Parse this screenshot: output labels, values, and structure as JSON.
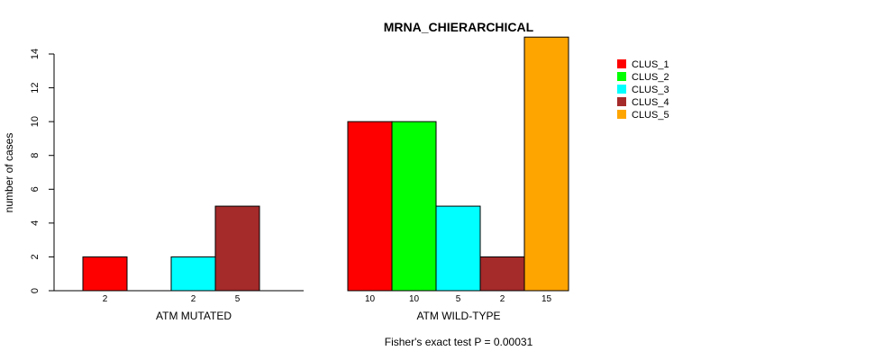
{
  "chart_data": {
    "type": "bar",
    "title": "MRNA_CHIERARCHICAL",
    "ylabel": "number of cases",
    "ylim": [
      0,
      14
    ],
    "yticks": [
      "0",
      "2",
      "4",
      "6",
      "8",
      "10",
      "12",
      "14"
    ],
    "groups": [
      {
        "label": "ATM MUTATED",
        "values": [
          2,
          0,
          2,
          5,
          0
        ],
        "count_labels": [
          "2",
          "",
          "2",
          "5",
          ""
        ]
      },
      {
        "label": "ATM WILD-TYPE",
        "values": [
          10,
          10,
          5,
          2,
          15
        ],
        "count_labels": [
          "10",
          "10",
          "5",
          "2",
          "15"
        ]
      }
    ],
    "series": [
      {
        "name": "CLUS_1",
        "color": "#ff0000"
      },
      {
        "name": "CLUS_2",
        "color": "#00ff00"
      },
      {
        "name": "CLUS_3",
        "color": "#00ffff"
      },
      {
        "name": "CLUS_4",
        "color": "#a52a2a"
      },
      {
        "name": "CLUS_5",
        "color": "#ffa500"
      }
    ],
    "legend_position": "top-right",
    "footnote": "Fisher's exact test P = 0.00031"
  }
}
